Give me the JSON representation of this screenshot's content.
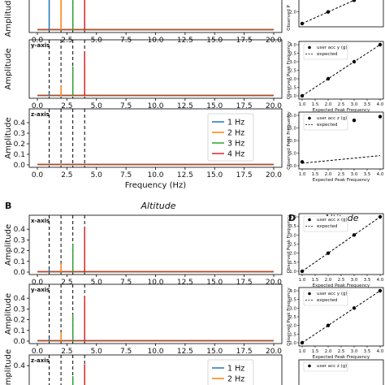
{
  "colors": {
    "hz1": "#1f77b4",
    "hz2": "#ff7f0e",
    "hz3": "#2ca02c",
    "hz4": "#d62728"
  },
  "panel_b": {
    "letter": "B",
    "title": "Altitude"
  },
  "panel_d": {
    "letter": "D",
    "title": "Altitude"
  },
  "chart_data": [
    {
      "type": "line",
      "group": "top-left-A",
      "axis_label": "",
      "ylabel": "Amplitude",
      "xlabel": "",
      "xlim": [
        0,
        20
      ],
      "ylim": [
        0,
        0.5
      ],
      "xticks": [
        0.0,
        2.5,
        5.0,
        7.5,
        10.0,
        12.5,
        15.0,
        17.5,
        20.0
      ],
      "yticks": [],
      "dashed_lines_x": [
        1,
        2,
        3,
        4
      ],
      "series": [
        {
          "color_key": "hz1",
          "x": [
            1
          ],
          "y": [
            0.5
          ]
        },
        {
          "color_key": "hz2",
          "x": [
            2
          ],
          "y": [
            0.5
          ]
        },
        {
          "color_key": "hz3",
          "x": [
            3
          ],
          "y": [
            0.5
          ]
        },
        {
          "color_key": "hz4",
          "x": [
            4
          ],
          "y": [
            0.5
          ]
        }
      ]
    },
    {
      "type": "line",
      "group": "top-left-A",
      "axis_label": "y-axis",
      "ylabel": "Amplitude",
      "xlabel": "",
      "xlim": [
        0,
        20
      ],
      "ylim": [
        0,
        0.5
      ],
      "xticks": [
        0.0,
        2.5,
        5.0,
        7.5,
        10.0,
        12.5,
        15.0,
        17.5,
        20.0
      ],
      "yticks": [],
      "dashed_lines_x": [
        1,
        2,
        3,
        4
      ],
      "series": [
        {
          "color_key": "hz1",
          "x": [
            1
          ],
          "y": [
            0.03
          ]
        },
        {
          "color_key": "hz2",
          "x": [
            2
          ],
          "y": [
            0.1
          ]
        },
        {
          "color_key": "hz3",
          "x": [
            3
          ],
          "y": [
            0.28
          ]
        },
        {
          "color_key": "hz4",
          "x": [
            4
          ],
          "y": [
            0.42
          ]
        }
      ]
    },
    {
      "type": "line",
      "group": "top-left-A",
      "axis_label": "z-axis",
      "ylabel": "Amplitude",
      "xlabel": "Frequency (Hz)",
      "xlim": [
        0,
        20
      ],
      "ylim": [
        0,
        0.5
      ],
      "xticks": [
        0.0,
        2.5,
        5.0,
        7.5,
        10.0,
        12.5,
        15.0,
        17.5,
        20.0
      ],
      "yticks": [
        0.0,
        0.1,
        0.2,
        0.3,
        0.4
      ],
      "dashed_lines_x": [
        1,
        2,
        3,
        4
      ],
      "legend": [
        "1 Hz",
        "2 Hz",
        "3 Hz",
        "4 Hz"
      ],
      "series": [
        {
          "color_key": "hz1",
          "x": [
            1
          ],
          "y": [
            0.005
          ]
        },
        {
          "color_key": "hz2",
          "x": [
            2
          ],
          "y": [
            0.005
          ]
        },
        {
          "color_key": "hz3",
          "x": [
            3
          ],
          "y": [
            0.005
          ]
        },
        {
          "color_key": "hz4",
          "x": [
            4
          ],
          "y": [
            0.005
          ]
        }
      ]
    },
    {
      "type": "line",
      "group": "bottom-left-B",
      "axis_label": "x-axis",
      "ylabel": "Amplitude",
      "xlabel": "",
      "xlim": [
        0,
        20
      ],
      "ylim": [
        0,
        0.5
      ],
      "xticks": [
        0.0,
        2.5,
        5.0,
        7.5,
        10.0,
        12.5,
        15.0,
        17.5,
        20.0
      ],
      "yticks": [
        0.0,
        0.1,
        0.2,
        0.3,
        0.4
      ],
      "dashed_lines_x": [
        1,
        2,
        3,
        4
      ],
      "series": [
        {
          "color_key": "hz1",
          "x": [
            1
          ],
          "y": [
            0.03
          ]
        },
        {
          "color_key": "hz2",
          "x": [
            2
          ],
          "y": [
            0.08
          ]
        },
        {
          "color_key": "hz3",
          "x": [
            3
          ],
          "y": [
            0.26
          ]
        },
        {
          "color_key": "hz4",
          "x": [
            4
          ],
          "y": [
            0.42
          ]
        }
      ]
    },
    {
      "type": "line",
      "group": "bottom-left-B",
      "axis_label": "y-axis",
      "ylabel": "Amplitude",
      "xlabel": "",
      "xlim": [
        0,
        20
      ],
      "ylim": [
        0,
        0.5
      ],
      "xticks": [
        0.0,
        2.5,
        5.0,
        7.5,
        10.0,
        12.5,
        15.0,
        17.5,
        20.0
      ],
      "yticks": [
        0.0,
        0.1,
        0.2,
        0.3,
        0.4
      ],
      "dashed_lines_x": [
        1,
        2,
        3,
        4
      ],
      "series": [
        {
          "color_key": "hz1",
          "x": [
            1
          ],
          "y": [
            0.03
          ]
        },
        {
          "color_key": "hz2",
          "x": [
            2
          ],
          "y": [
            0.08
          ]
        },
        {
          "color_key": "hz3",
          "x": [
            3
          ],
          "y": [
            0.25
          ]
        },
        {
          "color_key": "hz4",
          "x": [
            4
          ],
          "y": [
            0.42
          ]
        }
      ]
    },
    {
      "type": "line",
      "group": "bottom-left-B",
      "axis_label": "z-axis",
      "ylabel": "Amplitude",
      "xlabel": "",
      "xlim": [
        0,
        20
      ],
      "ylim": [
        0,
        0.5
      ],
      "xticks": [],
      "yticks": [
        0.4
      ],
      "dashed_lines_x": [
        1,
        2,
        3,
        4
      ],
      "legend": [
        "1 Hz",
        "2 Hz"
      ],
      "series": [
        {
          "color_key": "hz1",
          "x": [
            1
          ],
          "y": [
            0.03
          ]
        },
        {
          "color_key": "hz2",
          "x": [
            2
          ],
          "y": [
            0.08
          ]
        },
        {
          "color_key": "hz3",
          "x": [
            3
          ],
          "y": [
            0.26
          ]
        },
        {
          "color_key": "hz4",
          "x": [
            4
          ],
          "y": [
            0.42
          ]
        }
      ]
    },
    {
      "type": "scatter",
      "group": "top-right",
      "ylabel": "Observed P",
      "xlabel": "",
      "xticks": [],
      "yticks": [
        2.0,
        3.0,
        4.0
      ],
      "xlim": [
        1,
        4
      ],
      "ylim": [
        1,
        4
      ],
      "legend_visible": false,
      "points": {
        "x": [
          1,
          2,
          3,
          4
        ],
        "y": [
          1,
          2,
          3,
          4
        ]
      },
      "expected": [
        [
          1,
          1
        ],
        [
          4,
          4
        ]
      ]
    },
    {
      "type": "scatter",
      "group": "top-right",
      "ylabel": "Observed Peak Frequency",
      "xlabel": "Expected Peak Frequency",
      "xticks": [
        1.0,
        1.5,
        2.0,
        2.5,
        3.0,
        3.5,
        4.0
      ],
      "yticks": [
        1.0,
        1.5,
        2.0,
        2.5,
        3.0,
        3.5,
        4.0
      ],
      "xlim": [
        1,
        4
      ],
      "ylim": [
        1,
        4
      ],
      "legend": [
        "user acc y (g)",
        "expected"
      ],
      "points": {
        "x": [
          1,
          2,
          3,
          4
        ],
        "y": [
          1,
          2,
          3,
          4
        ]
      },
      "expected": [
        [
          1,
          1
        ],
        [
          4,
          4
        ]
      ]
    },
    {
      "type": "scatter",
      "group": "top-right",
      "ylabel": "Observed Peak Frequency",
      "xlabel": "Expected Peak Frequency",
      "xticks": [
        1.0,
        1.5,
        2.0,
        2.5,
        3.0,
        3.5,
        4.0
      ],
      "yticks": [
        0,
        5,
        10,
        15,
        20
      ],
      "xlim": [
        1,
        4
      ],
      "ylim": [
        0,
        20
      ],
      "legend": [
        "user acc z (g)",
        "expected"
      ],
      "points": {
        "x": [
          1,
          2,
          3,
          4
        ],
        "y": [
          1.5,
          19.5,
          18,
          19.5
        ]
      },
      "expected": [
        [
          1,
          1
        ],
        [
          4,
          4
        ]
      ]
    },
    {
      "type": "scatter",
      "group": "bottom-right-D",
      "ylabel": "Observed Peak Frequency",
      "xlabel": "Expected Peak Frequency",
      "xticks": [
        1.0,
        1.5,
        2.0,
        2.5,
        3.0,
        3.5,
        4.0
      ],
      "yticks": [
        1.0,
        1.5,
        2.0,
        2.5,
        3.0,
        3.5,
        4.0
      ],
      "xlim": [
        1,
        4
      ],
      "ylim": [
        1,
        4
      ],
      "legend": [
        "user acc x (g)",
        "expected"
      ],
      "points": {
        "x": [
          1,
          2,
          3,
          4
        ],
        "y": [
          1,
          2,
          3,
          4
        ]
      },
      "expected": [
        [
          1,
          1
        ],
        [
          4,
          4
        ]
      ]
    },
    {
      "type": "scatter",
      "group": "bottom-right-D",
      "ylabel": "Observed Peak Frequency",
      "xlabel": "Expected Peak Frequency",
      "xticks": [
        1.0,
        1.5,
        2.0,
        2.5,
        3.0,
        3.5,
        4.0
      ],
      "yticks": [
        1.0,
        1.5,
        2.0,
        2.5,
        3.0,
        3.5,
        4.0
      ],
      "xlim": [
        1,
        4
      ],
      "ylim": [
        1,
        4
      ],
      "legend": [
        "user acc y (g)",
        "expected"
      ],
      "points": {
        "x": [
          1,
          2,
          3,
          4
        ],
        "y": [
          1,
          2,
          3,
          4
        ]
      },
      "expected": [
        [
          1,
          1
        ],
        [
          4,
          4
        ]
      ]
    },
    {
      "type": "scatter",
      "group": "bottom-right-D",
      "ylabel": "",
      "xlabel": "",
      "xticks": [],
      "yticks": [],
      "xlim": [
        1,
        4
      ],
      "ylim": [
        1,
        4
      ],
      "legend": [
        "user acc z (g)"
      ],
      "points": {
        "x": [],
        "y": []
      },
      "expected": []
    }
  ]
}
